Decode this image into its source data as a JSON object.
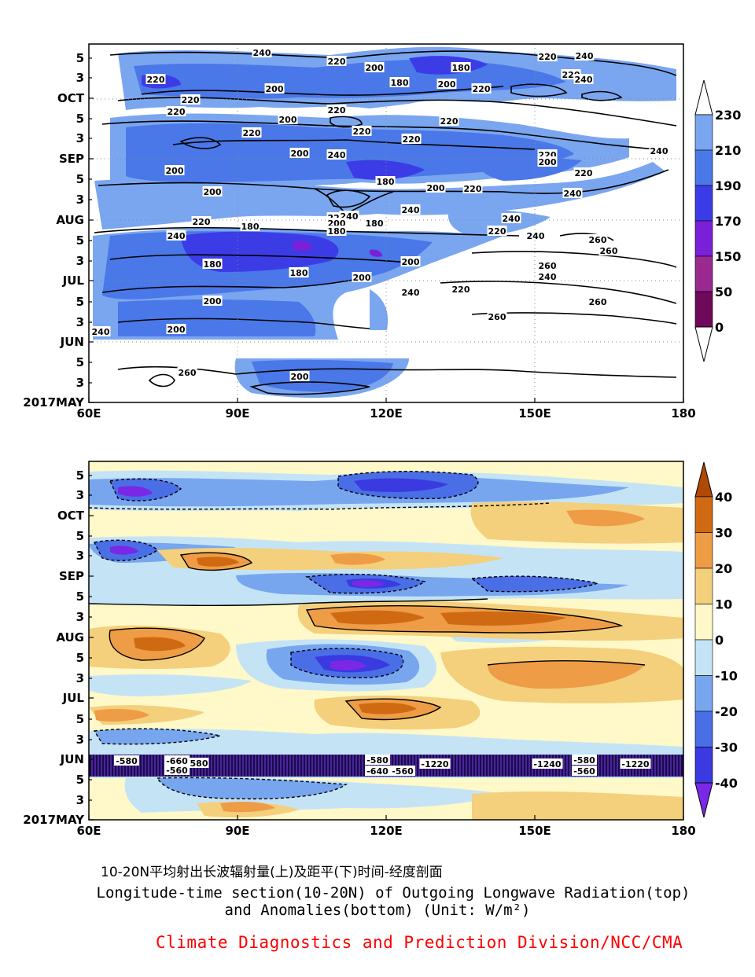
{
  "chart_data": [
    {
      "type": "heatmap",
      "panel": "top",
      "variable": "Outgoing Longwave Radiation",
      "x_ticks": [
        "60E",
        "90E",
        "120E",
        "150E",
        "180"
      ],
      "xlim": [
        60,
        180
      ],
      "y_ticks": [
        "2017MAY",
        "3",
        "5",
        "JUN",
        "3",
        "5",
        "JUL",
        "3",
        "5",
        "AUG",
        "3",
        "5",
        "SEP",
        "3",
        "5",
        "OCT",
        "3",
        "5"
      ],
      "colorbar": {
        "labels": [
          "0",
          "50",
          "150",
          "170",
          "190",
          "210",
          "230"
        ],
        "colors": [
          "#ffffff",
          "#6e0a5a",
          "#9a2a90",
          "#7a20d8",
          "#3c3ce6",
          "#4a78e8",
          "#7aa6f0",
          "#ffffff"
        ]
      },
      "contour_labels": [
        "240",
        "220",
        "200",
        "180",
        "200",
        "220",
        "200",
        "240",
        "220",
        "200",
        "220",
        "180",
        "200",
        "200",
        "220",
        "240",
        "220",
        "240",
        "220",
        "200",
        "220",
        "200",
        "240",
        "240",
        "220",
        "220",
        "200",
        "220",
        "220",
        "240",
        "200",
        "180",
        "200",
        "220",
        "240",
        "200",
        "240",
        "220",
        "240",
        "240",
        "220",
        "200",
        "180",
        "240",
        "180",
        "240",
        "200",
        "240",
        "220",
        "260",
        "260",
        "240",
        "180",
        "180",
        "260",
        "200",
        "200",
        "260",
        "240",
        "220",
        "240",
        "200",
        "260",
        "240",
        "200",
        "260",
        "200"
      ]
    },
    {
      "type": "heatmap",
      "panel": "bottom",
      "variable": "OLR anomaly",
      "x_ticks": [
        "60E",
        "90E",
        "120E",
        "150E",
        "180"
      ],
      "xlim": [
        60,
        180
      ],
      "y_ticks": [
        "2017MAY",
        "3",
        "5",
        "JUN",
        "3",
        "5",
        "JUL",
        "3",
        "5",
        "AUG",
        "3",
        "5",
        "SEP",
        "3",
        "5",
        "OCT",
        "3",
        "5"
      ],
      "colorbar": {
        "labels": [
          "-40",
          "-30",
          "-20",
          "-10",
          "0",
          "10",
          "20",
          "30",
          "40"
        ],
        "colors": [
          "#7a28e6",
          "#3a3ae0",
          "#4a6ee6",
          "#78a6ee",
          "#c4e4f6",
          "#fff8c8",
          "#f4cf7c",
          "#ee9c46",
          "#d06a12",
          "#b04806"
        ]
      },
      "contour_labels": [
        "-580",
        "-660",
        "-560",
        "580",
        "-580",
        "-640",
        "-560",
        "-1220",
        "-1240",
        "-580",
        "-560",
        "-1220"
      ]
    }
  ],
  "caption": {
    "chinese": "10-20N平均射出长波辐射量(上)及距平(下)时间-经度剖面",
    "english_line1": "Longitude-time section(10-20N) of Outgoing Longwave Radiation(top)",
    "english_line2": "and Anomalies(bottom) (Unit: W/m²)"
  },
  "credit": "Climate Diagnostics and Prediction Division/NCC/CMA"
}
